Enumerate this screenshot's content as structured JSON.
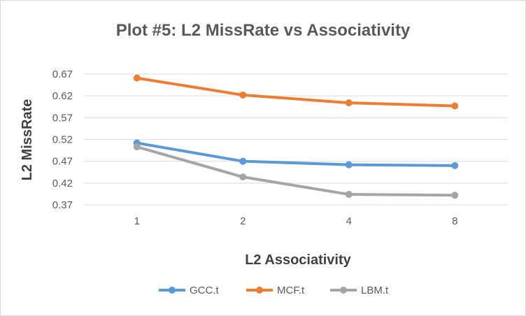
{
  "chart_data": {
    "type": "line",
    "title": "Plot #5: L2 MissRate vs Associativity",
    "xlabel": "L2 Associativity",
    "ylabel": "L2 MissRate",
    "categories": [
      "1",
      "2",
      "4",
      "8"
    ],
    "yticks": [
      "0.67",
      "0.62",
      "0.57",
      "0.52",
      "0.47",
      "0.42",
      "0.37"
    ],
    "ylim": [
      0.37,
      0.67
    ],
    "grid": true,
    "legend_position": "bottom",
    "series": [
      {
        "name": "GCC.t",
        "color": "#5b9bd5",
        "values": [
          0.512,
          0.47,
          0.462,
          0.46
        ]
      },
      {
        "name": "MCF.t",
        "color": "#ed7d31",
        "values": [
          0.661,
          0.622,
          0.604,
          0.597
        ]
      },
      {
        "name": "LBM.t",
        "color": "#a5a5a5",
        "values": [
          0.503,
          0.434,
          0.394,
          0.392
        ]
      }
    ]
  }
}
